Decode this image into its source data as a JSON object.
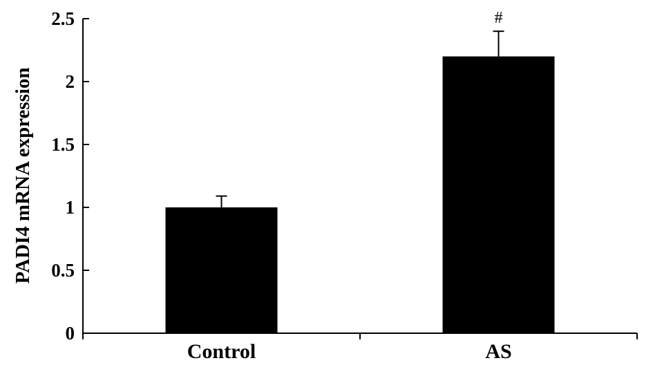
{
  "chart_data": {
    "type": "bar",
    "categories": [
      "Control",
      "AS"
    ],
    "values": [
      1.0,
      2.2
    ],
    "errors": [
      0.09,
      0.2
    ],
    "annotations": [
      "",
      "#"
    ],
    "ylabel": "PADI4 mRNA expression",
    "xlabel": "",
    "ylim": [
      0,
      2.5
    ],
    "yticks": [
      0,
      0.5,
      1,
      1.5,
      2,
      2.5
    ],
    "ytick_labels": [
      "0",
      "0.5",
      "1",
      "1.5",
      "2",
      "2.5"
    ],
    "bar_color": "#000000",
    "grid": false,
    "legend": false
  }
}
